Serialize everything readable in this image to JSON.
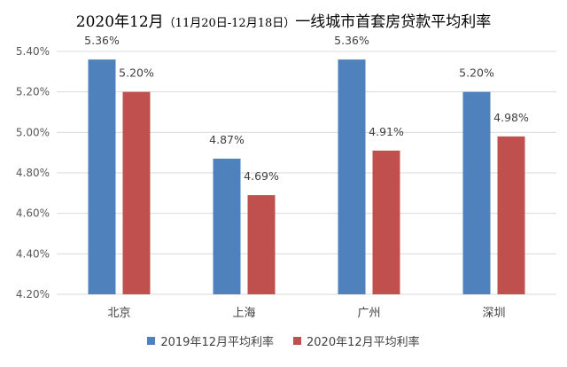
{
  "chart_data": {
    "type": "bar",
    "title_main": "2020年12月",
    "title_range": "（11月20日-12月18日）",
    "title_rest": "一线城市首套房贷款平均利率",
    "categories": [
      "北京",
      "上海",
      "广州",
      "深圳"
    ],
    "series": [
      {
        "name": "2019年12月平均利率",
        "color": "#4f81bd",
        "values": [
          5.36,
          4.87,
          5.36,
          5.2
        ],
        "labels": [
          "5.36%",
          "4.87%",
          "5.36%",
          "5.20%"
        ]
      },
      {
        "name": "2020年12月平均利率",
        "color": "#c0504d",
        "values": [
          5.2,
          4.69,
          4.91,
          4.98
        ],
        "labels": [
          "5.20%",
          "4.69%",
          "4.91%",
          "4.98%"
        ]
      }
    ],
    "ylim": [
      4.2,
      5.4
    ],
    "yticks": [
      4.2,
      4.4,
      4.6,
      4.8,
      5.0,
      5.2,
      5.4
    ],
    "ytick_labels": [
      "4.20%",
      "4.40%",
      "4.60%",
      "4.80%",
      "5.00%",
      "5.20%",
      "5.40%"
    ],
    "grid": true,
    "legend_position": "bottom"
  }
}
